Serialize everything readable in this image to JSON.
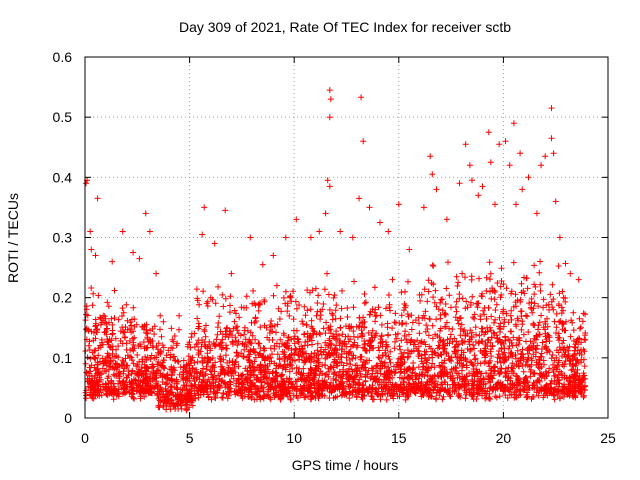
{
  "chart_data": {
    "type": "scatter",
    "title": "Day 309 of 2021, Rate Of TEC Index for receiver sctb",
    "xlabel": "GPS time / hours",
    "ylabel": "ROTI / TECUs",
    "xlim": [
      0,
      25
    ],
    "ylim": [
      0,
      0.6
    ],
    "x_ticks": [
      0,
      5,
      10,
      15,
      20,
      25
    ],
    "x_tick_labels": [
      "0",
      "5",
      "10",
      "15",
      "20",
      "25"
    ],
    "y_ticks": [
      0,
      0.1,
      0.2,
      0.3,
      0.4,
      0.5,
      0.6
    ],
    "y_tick_labels": [
      "0",
      "0.1",
      "0.2",
      "0.3",
      "0.4",
      "0.5",
      "0.6"
    ],
    "grid": true,
    "legend": "none",
    "marker": "+",
    "color": "#ff0000",
    "series": [
      {
        "points": [
          [
            0.05,
            0.39
          ],
          [
            0.1,
            0.395
          ],
          [
            0.25,
            0.31
          ],
          [
            0.6,
            0.365
          ],
          [
            0.3,
            0.28
          ],
          [
            0.5,
            0.27
          ],
          [
            1.3,
            0.26
          ],
          [
            1.8,
            0.31
          ],
          [
            2.3,
            0.275
          ],
          [
            2.9,
            0.34
          ],
          [
            3.1,
            0.31
          ],
          [
            3.4,
            0.24
          ],
          [
            2.6,
            0.265
          ],
          [
            4.5,
            0.17
          ],
          [
            5.7,
            0.35
          ],
          [
            5.6,
            0.305
          ],
          [
            6.7,
            0.345
          ],
          [
            6.2,
            0.29
          ],
          [
            7.0,
            0.24
          ],
          [
            7.9,
            0.3
          ],
          [
            8.5,
            0.255
          ],
          [
            9.0,
            0.27
          ],
          [
            9.6,
            0.3
          ],
          [
            10.1,
            0.33
          ],
          [
            10.8,
            0.3
          ],
          [
            11.2,
            0.31
          ],
          [
            11.7,
            0.545
          ],
          [
            11.75,
            0.53
          ],
          [
            11.7,
            0.5
          ],
          [
            11.6,
            0.395
          ],
          [
            11.7,
            0.385
          ],
          [
            11.5,
            0.34
          ],
          [
            12.2,
            0.31
          ],
          [
            12.8,
            0.3
          ],
          [
            13.2,
            0.533
          ],
          [
            13.3,
            0.46
          ],
          [
            13.1,
            0.365
          ],
          [
            13.6,
            0.35
          ],
          [
            14.1,
            0.325
          ],
          [
            14.5,
            0.31
          ],
          [
            15.0,
            0.355
          ],
          [
            15.5,
            0.28
          ],
          [
            16.2,
            0.35
          ],
          [
            16.5,
            0.435
          ],
          [
            16.6,
            0.405
          ],
          [
            16.8,
            0.38
          ],
          [
            17.3,
            0.33
          ],
          [
            17.9,
            0.39
          ],
          [
            18.2,
            0.455
          ],
          [
            18.4,
            0.42
          ],
          [
            18.5,
            0.395
          ],
          [
            18.8,
            0.37
          ],
          [
            19.0,
            0.385
          ],
          [
            19.3,
            0.475
          ],
          [
            19.4,
            0.425
          ],
          [
            19.6,
            0.355
          ],
          [
            19.8,
            0.455
          ],
          [
            20.1,
            0.46
          ],
          [
            20.3,
            0.42
          ],
          [
            20.5,
            0.49
          ],
          [
            20.6,
            0.355
          ],
          [
            20.8,
            0.44
          ],
          [
            20.9,
            0.38
          ],
          [
            21.2,
            0.4
          ],
          [
            21.6,
            0.34
          ],
          [
            21.8,
            0.42
          ],
          [
            22.0,
            0.435
          ],
          [
            22.3,
            0.515
          ],
          [
            22.3,
            0.465
          ],
          [
            22.4,
            0.44
          ],
          [
            22.5,
            0.36
          ],
          [
            22.7,
            0.3
          ],
          [
            23.2,
            0.24
          ],
          [
            23.6,
            0.23
          ]
        ]
      }
    ]
  }
}
